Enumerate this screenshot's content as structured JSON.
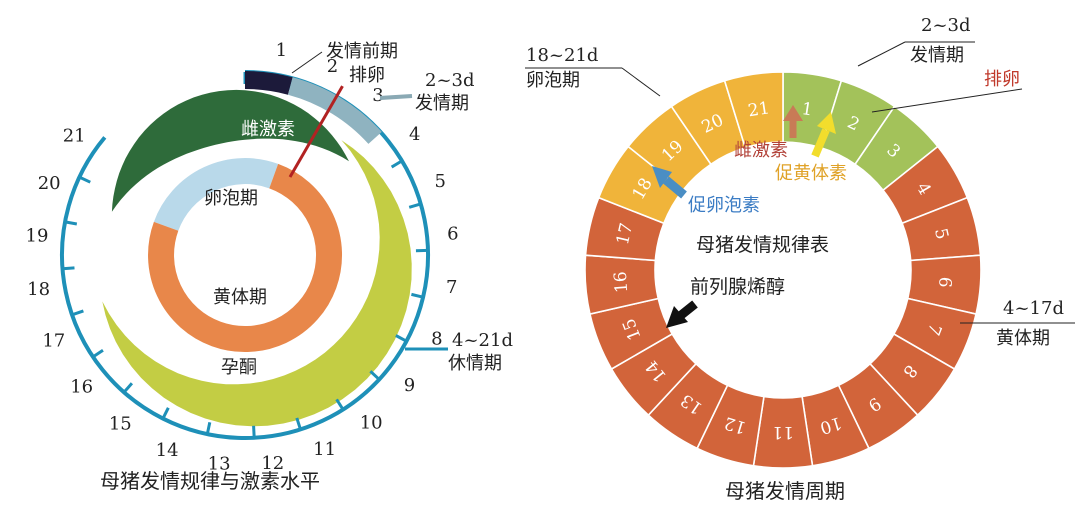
{
  "left": {
    "caption": "母猪发情规律与激素水平",
    "day_numbers": [
      "1",
      "2",
      "3",
      "4",
      "5",
      "6",
      "7",
      "8",
      "9",
      "10",
      "11",
      "12",
      "13",
      "14",
      "15",
      "16",
      "17",
      "18",
      "19",
      "20",
      "21"
    ],
    "labels": {
      "proestrus": "发情前期",
      "ovulation": "排卵",
      "estrus_days": "2~3d",
      "estrus": "发情期",
      "diestrus_days": "4~21d",
      "diestrus": "休情期",
      "estrogen": "雌激素",
      "follicular": "卵泡期",
      "luteal": "黄体期",
      "progesterone": "孕酮"
    },
    "colors": {
      "ring": "#1e90b8",
      "proestrus": "#1c1a3a",
      "estrus": "#8fb3c0",
      "estrogen": "#2e6b3a",
      "follicular": "#b9d9ea",
      "luteal": "#e8874a",
      "progesterone": "#c3cd44",
      "ovulation_line": "#b22222"
    }
  },
  "right": {
    "caption": "母猪发情周期",
    "center_title": "母猪发情规律表",
    "segments": [
      "1",
      "2",
      "3",
      "4",
      "5",
      "6",
      "7",
      "8",
      "9",
      "10",
      "11",
      "12",
      "13",
      "14",
      "15",
      "16",
      "17",
      "18",
      "19",
      "20",
      "21"
    ],
    "labels": {
      "follicle_days": "18~21d",
      "follicle_phase": "卵泡期",
      "estrus_days": "2~3d",
      "estrus": "发情期",
      "ovulation": "排卵",
      "estrogen": "雌激素",
      "lh": "促黄体素",
      "fsh": "促卵泡素",
      "pgf": "前列腺烯醇",
      "luteal_days": "4~17d",
      "luteal": "黄体期"
    },
    "colors": {
      "green": "#a3c25a",
      "yellow": "#f0b43a",
      "orange": "#d2643a",
      "estrogen_arrow": "#c87b56",
      "lh_arrow": "#f2dd2c",
      "fsh_arrow": "#4a8ec4",
      "pgf_arrow": "#111111",
      "ovulation_text": "#c0392b",
      "estrogen_text": "#b2433a",
      "lh_text": "#e0a227",
      "fsh_text": "#3b7cc4"
    }
  }
}
